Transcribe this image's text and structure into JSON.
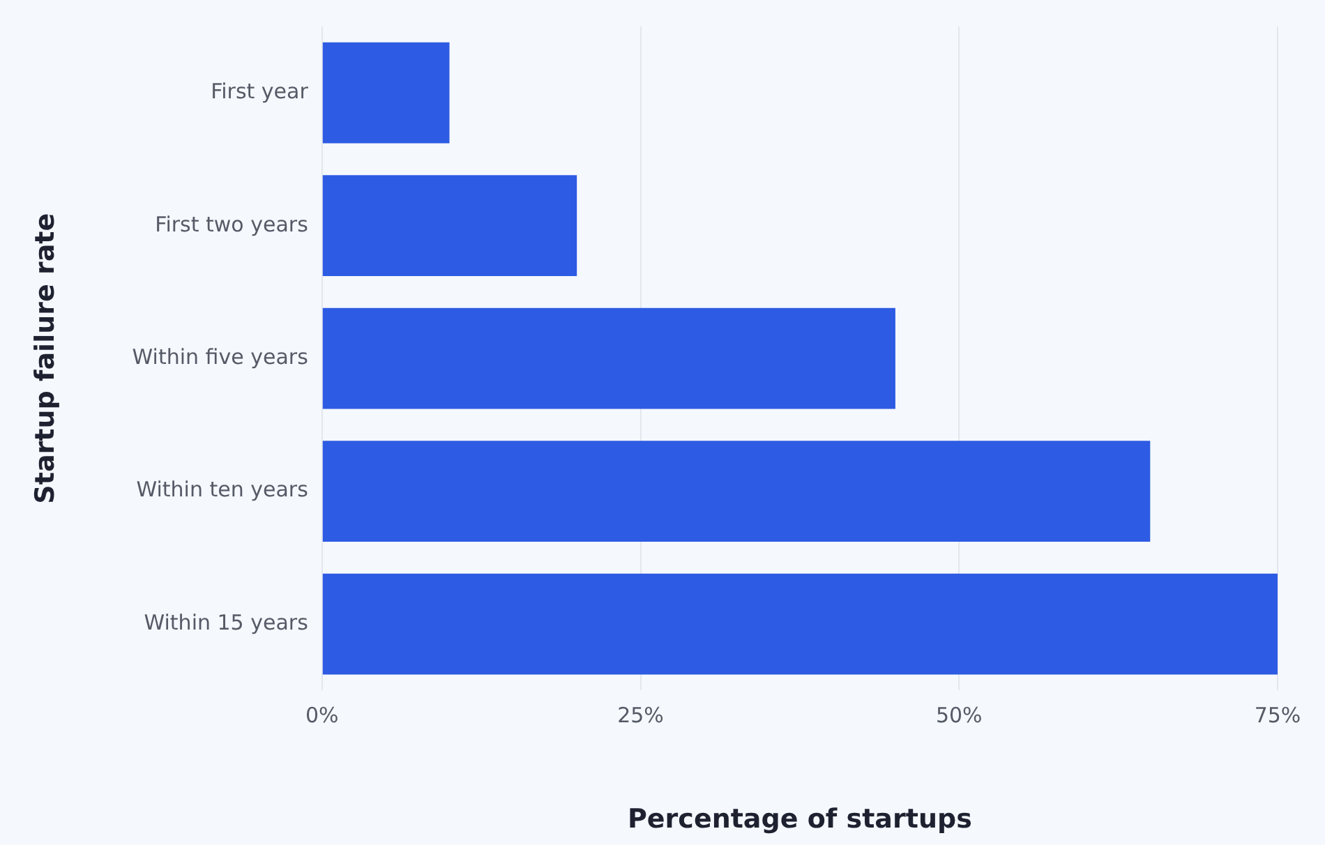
{
  "chart_data": {
    "type": "bar",
    "orientation": "horizontal",
    "categories": [
      "First year",
      "First two years",
      "Within five years",
      "Within ten years",
      "Within 15 years"
    ],
    "values": [
      10,
      20,
      45,
      65,
      75
    ],
    "color": "#2d5be3",
    "xlabel": "Percentage of startups",
    "ylabel": "Startup failure rate",
    "xlim": [
      0,
      75
    ],
    "xticks": [
      {
        "value": 0,
        "label": "0%"
      },
      {
        "value": 25,
        "label": "25%"
      },
      {
        "value": 50,
        "label": "50%"
      },
      {
        "value": 75,
        "label": "75%"
      }
    ],
    "grid": "x"
  }
}
